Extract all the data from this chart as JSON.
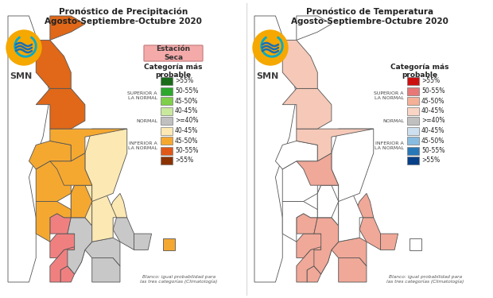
{
  "title_left": "Pronóstico de Precipitación\nAgosto-Septiembre-Octubre 2020",
  "title_right": "Pronóstico de Temperatura\nAgosto-Septiembre-Octubre 2020",
  "left_legend_title": "Categoría más\nprobable",
  "right_legend_title": "Categoría más\nprobable",
  "left_label_dry": "Estación\nSeca",
  "label_superior": "SUPERIOR A\nLA NORMAL",
  "label_normal": "NORMAL",
  "label_inferior": "INFERIOR A\nLA NORMAL",
  "footnote": "Blanco: igual probabilidad para\nlas tres categorías (Climatología)",
  "left_legend_colors": [
    "#1a6b1a",
    "#2da82d",
    "#7fcf4a",
    "#c8e89c",
    "#c0c0c0",
    "#fce8b2",
    "#f5a830",
    "#e05818",
    "#8b3200"
  ],
  "left_legend_labels": [
    ">55%",
    "50-55%",
    "45-50%",
    "40-45%",
    ">=40%",
    "40-45%",
    "45-50%",
    "50-55%",
    ">55%"
  ],
  "right_legend_colors": [
    "#cc1010",
    "#e87878",
    "#f5b098",
    "#fad4c4",
    "#c0c0c0",
    "#cce0f0",
    "#88bce0",
    "#2878b8",
    "#084088"
  ],
  "right_legend_labels": [
    ">55%",
    "50-55%",
    "45-50%",
    "40-45%",
    ">=40%",
    "40-45%",
    "45-50%",
    "50-55%",
    ">55%"
  ],
  "bg_color": "#ffffff",
  "smn_text_color": "#404040",
  "title_fontsize": 7.5,
  "map_border_color": "#555555",
  "dry_station_bg": "#f09090",
  "logo_orange": "#f5a800",
  "logo_blue": "#1a6eb5",
  "logo_teal": "#00aacc"
}
